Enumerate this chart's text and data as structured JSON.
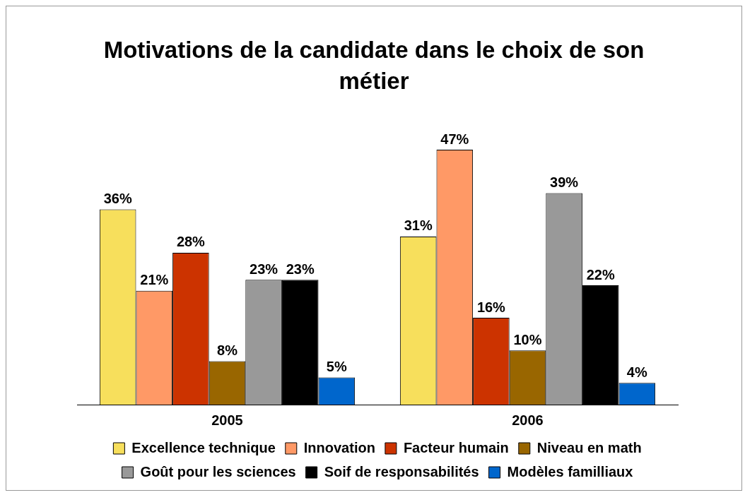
{
  "chart_data": {
    "type": "bar",
    "title": "Motivations de la candidate dans le choix de son métier",
    "categories": [
      "2005",
      "2006"
    ],
    "series": [
      {
        "name": "Excellence technique",
        "color": "#f7df5c",
        "values": [
          36,
          31
        ],
        "value_labels": [
          "36%",
          "31%"
        ]
      },
      {
        "name": "Innovation",
        "color": "#ff9966",
        "values": [
          21,
          47
        ],
        "value_labels": [
          "21%",
          "47%"
        ]
      },
      {
        "name": "Facteur humain",
        "color": "#cc3300",
        "values": [
          28,
          16
        ],
        "value_labels": [
          "28%",
          "16%"
        ]
      },
      {
        "name": "Niveau en math",
        "color": "#996600",
        "values": [
          8,
          10
        ],
        "value_labels": [
          "8%",
          "10%"
        ]
      },
      {
        "name": "Goût pour les sciences",
        "color": "#999999",
        "values": [
          23,
          39
        ],
        "value_labels": [
          "23%",
          "39%"
        ]
      },
      {
        "name": "Soif de responsabilités",
        "color": "#000000",
        "values": [
          23,
          22
        ],
        "value_labels": [
          "23%",
          "22%"
        ]
      },
      {
        "name": "Modèles familliaux",
        "color": "#0066cc",
        "values": [
          5,
          4
        ],
        "value_labels": [
          "5%",
          "4%"
        ]
      }
    ],
    "grid": false,
    "legend": "bottom"
  }
}
